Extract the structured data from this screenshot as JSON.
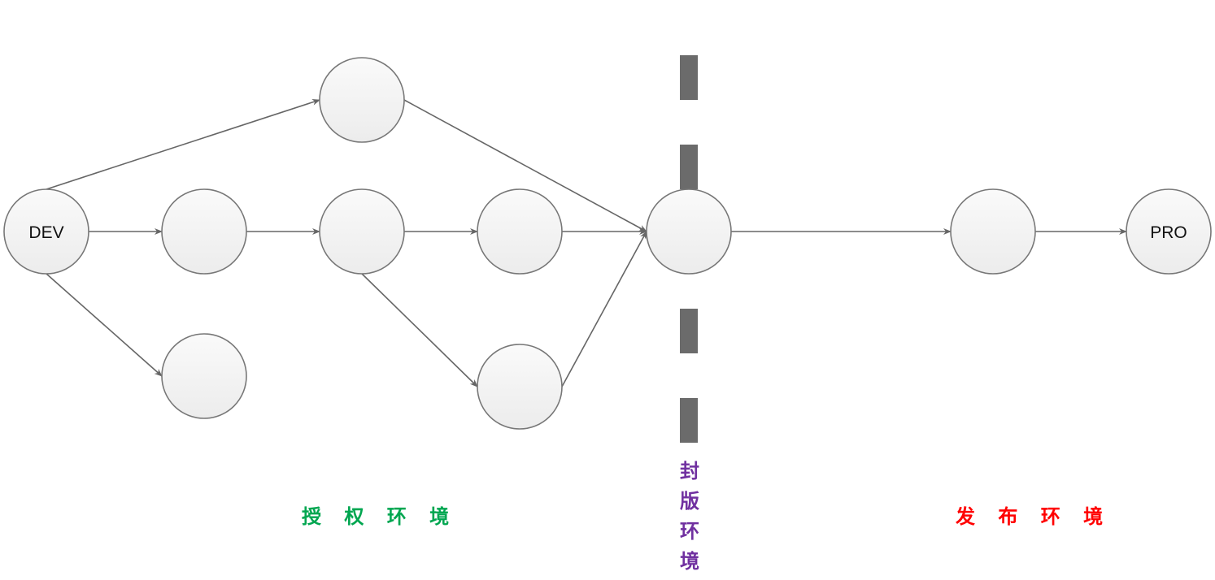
{
  "nodes": {
    "dev": "DEV",
    "pro": "PRO"
  },
  "zones": {
    "auth": "授 权 环 境",
    "freeze": "封版环境",
    "release": "发 布 环 境"
  },
  "colors": {
    "auth": "#00a650",
    "freeze": "#7030a0",
    "release": "#ff0000",
    "edge": "#666666",
    "node_stroke": "#777777",
    "divider": "#6b6b6b"
  }
}
